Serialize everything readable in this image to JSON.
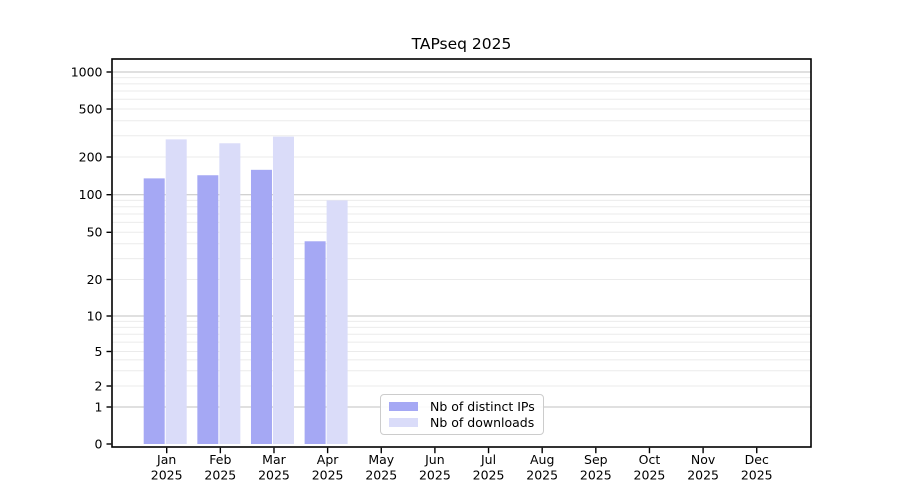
{
  "chart_data": {
    "type": "bar",
    "title": "TAPseq 2025",
    "year_label": "2025",
    "categories": [
      "Jan",
      "Feb",
      "Mar",
      "Apr",
      "May",
      "Jun",
      "Jul",
      "Aug",
      "Sep",
      "Oct",
      "Nov",
      "Dec"
    ],
    "series": [
      {
        "name": "Nb of distinct IPs",
        "color": "#a5a8f4",
        "values": [
          135,
          143,
          158,
          42,
          null,
          null,
          null,
          null,
          null,
          null,
          null,
          null
        ]
      },
      {
        "name": "Nb of downloads",
        "color": "#dadcf9",
        "values": [
          280,
          260,
          295,
          90,
          null,
          null,
          null,
          null,
          null,
          null,
          null,
          null
        ]
      }
    ],
    "xlabel": "",
    "ylabel": "",
    "yscale": "symlog",
    "yticks": [
      0,
      1,
      2,
      5,
      10,
      20,
      50,
      100,
      200,
      500,
      1000
    ],
    "ylim": [
      0,
      1300
    ],
    "grid": "major-and-minor horizontal",
    "legend_position": "lower center"
  },
  "colors": {
    "major_grid": "#c2c2c2",
    "minor_grid": "#ebebeb",
    "spine": "#000000",
    "text": "#000000",
    "background": "#ffffff"
  }
}
